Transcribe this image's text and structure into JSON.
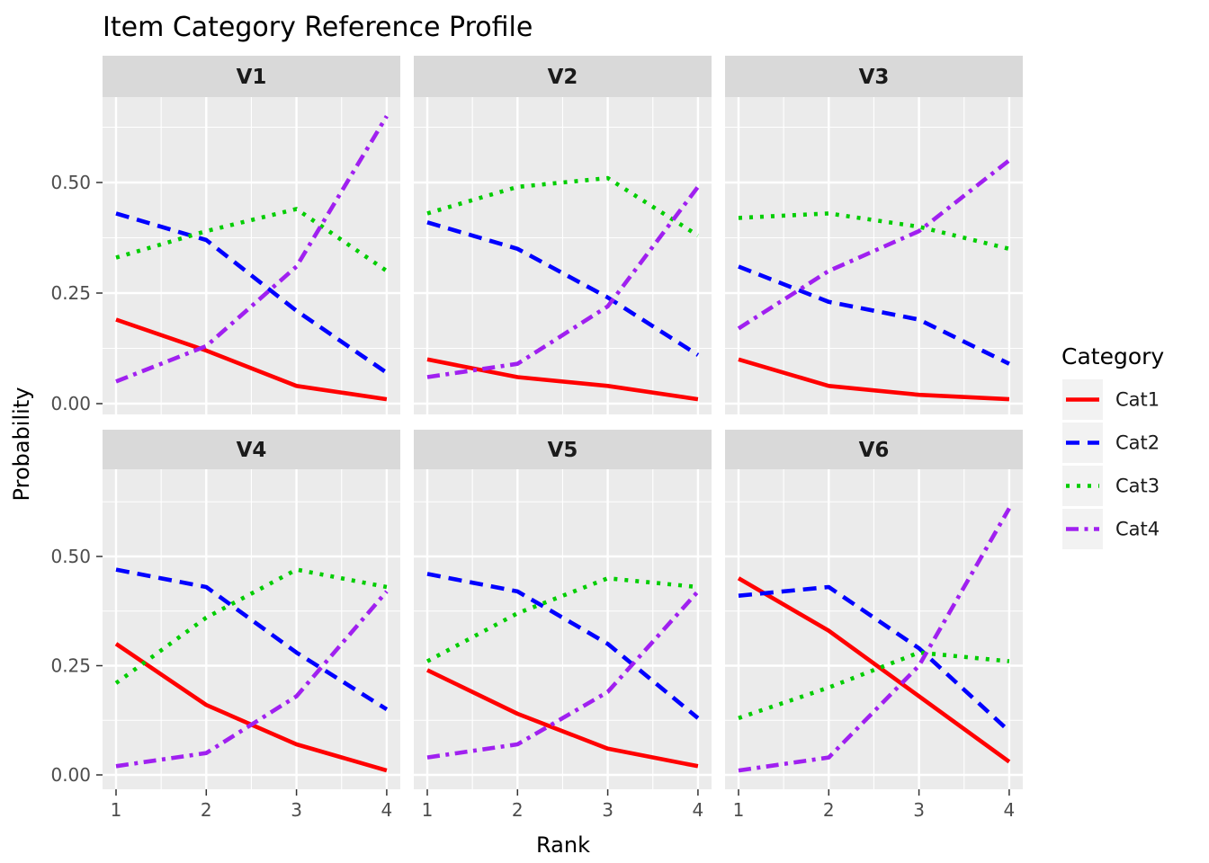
{
  "title": "Item Category Reference Profile",
  "axes": {
    "x_label": "Rank",
    "y_label": "Probability",
    "x_tick_labels": [
      "1",
      "2",
      "3",
      "4"
    ],
    "y_tick_labels": [
      "0.00",
      "0.25",
      "0.50"
    ]
  },
  "legend": {
    "title": "Category",
    "entries": [
      {
        "label": "Cat1",
        "color": "#FF0000",
        "linetype": "solid"
      },
      {
        "label": "Cat2",
        "color": "#0000FF",
        "linetype": "dashed"
      },
      {
        "label": "Cat3",
        "color": "#00CD00",
        "linetype": "dotted"
      },
      {
        "label": "Cat4",
        "color": "#A020F0",
        "linetype": "dashdot"
      }
    ]
  },
  "theme": {
    "panel_bg": "#EBEBEB",
    "strip_bg": "#D9D9D9",
    "grid_color": "#FFFFFF",
    "tick_color": "#333333",
    "tick_label_color": "#4D4D4D",
    "legend_key_bg": "#F2F2F2"
  },
  "chart_data": {
    "type": "line",
    "title": "Item Category Reference Profile",
    "xlabel": "Rank",
    "ylabel": "Probability",
    "x": [
      1,
      2,
      3,
      4
    ],
    "x_tick_labels": [
      "1",
      "2",
      "3",
      "4"
    ],
    "y_tick_values": [
      0.0,
      0.25,
      0.5
    ],
    "y_tick_labels": [
      "0.00",
      "0.25",
      "0.50"
    ],
    "y_minor_gridlines": [
      0.125,
      0.375,
      0.625
    ],
    "x_minor_gridlines": [
      1.5,
      2.5,
      3.5
    ],
    "ylim_data": [
      0.0,
      0.65
    ],
    "grid": true,
    "legend_position": "right",
    "facet_layout": {
      "rows": 2,
      "cols": 3
    },
    "series_meta": [
      {
        "name": "Cat1",
        "color": "#FF0000",
        "linetype": "solid"
      },
      {
        "name": "Cat2",
        "color": "#0000FF",
        "linetype": "dashed"
      },
      {
        "name": "Cat3",
        "color": "#00CD00",
        "linetype": "dotted"
      },
      {
        "name": "Cat4",
        "color": "#A020F0",
        "linetype": "dashdot"
      }
    ],
    "facets": [
      {
        "name": "V1",
        "series": {
          "Cat1": [
            0.19,
            0.12,
            0.04,
            0.01
          ],
          "Cat2": [
            0.43,
            0.37,
            0.21,
            0.07
          ],
          "Cat3": [
            0.33,
            0.39,
            0.44,
            0.3
          ],
          "Cat4": [
            0.05,
            0.13,
            0.31,
            0.65
          ]
        }
      },
      {
        "name": "V2",
        "series": {
          "Cat1": [
            0.1,
            0.06,
            0.04,
            0.01
          ],
          "Cat2": [
            0.41,
            0.35,
            0.24,
            0.11
          ],
          "Cat3": [
            0.43,
            0.49,
            0.51,
            0.38
          ],
          "Cat4": [
            0.06,
            0.09,
            0.22,
            0.49
          ]
        }
      },
      {
        "name": "V3",
        "series": {
          "Cat1": [
            0.1,
            0.04,
            0.02,
            0.01
          ],
          "Cat2": [
            0.31,
            0.23,
            0.19,
            0.09
          ],
          "Cat3": [
            0.42,
            0.43,
            0.4,
            0.35
          ],
          "Cat4": [
            0.17,
            0.3,
            0.39,
            0.55
          ]
        }
      },
      {
        "name": "V4",
        "series": {
          "Cat1": [
            0.3,
            0.16,
            0.07,
            0.01
          ],
          "Cat2": [
            0.47,
            0.43,
            0.28,
            0.15
          ],
          "Cat3": [
            0.21,
            0.36,
            0.47,
            0.43
          ],
          "Cat4": [
            0.02,
            0.05,
            0.18,
            0.42
          ]
        }
      },
      {
        "name": "V5",
        "series": {
          "Cat1": [
            0.24,
            0.14,
            0.06,
            0.02
          ],
          "Cat2": [
            0.46,
            0.42,
            0.3,
            0.13
          ],
          "Cat3": [
            0.26,
            0.37,
            0.45,
            0.43
          ],
          "Cat4": [
            0.04,
            0.07,
            0.19,
            0.42
          ]
        }
      },
      {
        "name": "V6",
        "series": {
          "Cat1": [
            0.45,
            0.33,
            0.18,
            0.03
          ],
          "Cat2": [
            0.41,
            0.43,
            0.29,
            0.1
          ],
          "Cat3": [
            0.13,
            0.2,
            0.28,
            0.26
          ],
          "Cat4": [
            0.01,
            0.04,
            0.25,
            0.61
          ]
        }
      }
    ]
  }
}
